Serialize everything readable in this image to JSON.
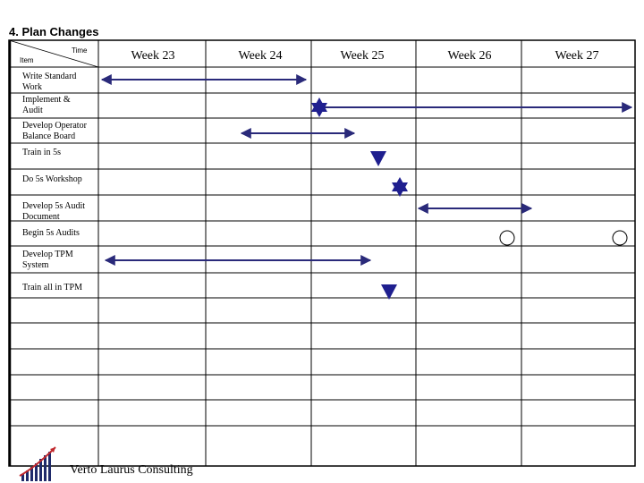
{
  "title": "4. Plan Changes",
  "header": {
    "time_label": "Time",
    "item_label": "Item"
  },
  "weeks": [
    "Week 23",
    "Week 24",
    "Week 25",
    "Week 26",
    "Week 27"
  ],
  "items": [
    {
      "label_lines": [
        "Write Standard",
        "Work"
      ]
    },
    {
      "label_lines": [
        "Implement &",
        "Audit"
      ]
    },
    {
      "label_lines": [
        "Develop Operator",
        "Balance Board"
      ]
    },
    {
      "label_lines": [
        "Train in 5s"
      ]
    },
    {
      "label_lines": [
        "Do 5s Workshop"
      ]
    },
    {
      "label_lines": [
        "Develop 5s Audit",
        "Document"
      ]
    },
    {
      "label_lines": [
        "Begin 5s Audits"
      ]
    },
    {
      "label_lines": [
        "Develop TPM",
        "System"
      ]
    },
    {
      "label_lines": [
        "Train all in TPM"
      ]
    }
  ],
  "footer": {
    "company": "Verto Laurus Consulting"
  },
  "colors": {
    "accent": "#2a2a7a",
    "marker": "#1f1f8f",
    "grid": "#000000"
  },
  "icons": {
    "star": "star-of-david-icon",
    "triangle": "triangle-down-icon",
    "circle": "circle-icon",
    "logo": "growth-chart-logo"
  }
}
